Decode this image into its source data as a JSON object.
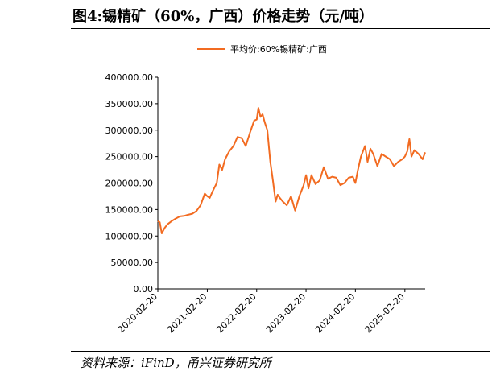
{
  "header": {
    "title": "图4:锡精矿（60%，广西）价格走势（元/吨）"
  },
  "footer": {
    "source": "资料来源：iFinD，甬兴证券研究所"
  },
  "colors": {
    "series": "#f26b21",
    "axis": "#000000"
  },
  "chart_data": {
    "type": "line",
    "title": "",
    "xlabel": "",
    "ylabel": "",
    "ylim": [
      0,
      400000
    ],
    "y_ticks": [
      "0.00",
      "50000.00",
      "100000.00",
      "150000.00",
      "200000.00",
      "250000.00",
      "300000.00",
      "350000.00",
      "400000.00"
    ],
    "x_ticks": [
      "2020-02-20",
      "2021-02-20",
      "2022-02-20",
      "2023-02-20",
      "2024-02-20",
      "2025-02-20"
    ],
    "x_range": [
      "2020-02-20",
      "2025-07-20"
    ],
    "grid": false,
    "legend": "top",
    "series": [
      {
        "name": "平均价:60%锡精矿:广西",
        "x": [
          "2020-02-20",
          "2020-03-05",
          "2020-03-20",
          "2020-04-10",
          "2020-05-01",
          "2020-06-01",
          "2020-07-01",
          "2020-08-01",
          "2020-09-01",
          "2020-10-01",
          "2020-11-01",
          "2020-12-01",
          "2021-01-01",
          "2021-02-01",
          "2021-02-20",
          "2021-03-10",
          "2021-04-01",
          "2021-05-01",
          "2021-05-20",
          "2021-06-10",
          "2021-07-01",
          "2021-08-01",
          "2021-09-01",
          "2021-10-01",
          "2021-11-01",
          "2021-12-01",
          "2022-01-01",
          "2022-02-01",
          "2022-02-20",
          "2022-03-05",
          "2022-03-20",
          "2022-04-05",
          "2022-04-20",
          "2022-05-10",
          "2022-06-01",
          "2022-06-20",
          "2022-07-10",
          "2022-07-25",
          "2022-08-10",
          "2022-09-01",
          "2022-10-01",
          "2022-11-01",
          "2022-12-01",
          "2023-01-01",
          "2023-02-01",
          "2023-02-20",
          "2023-03-10",
          "2023-04-01",
          "2023-05-01",
          "2023-06-01",
          "2023-07-01",
          "2023-08-01",
          "2023-09-01",
          "2023-10-01",
          "2023-11-01",
          "2023-12-01",
          "2024-01-01",
          "2024-02-01",
          "2024-02-20",
          "2024-03-10",
          "2024-04-01",
          "2024-05-01",
          "2024-05-20",
          "2024-06-10",
          "2024-07-01",
          "2024-08-01",
          "2024-09-01",
          "2024-10-01",
          "2024-11-01",
          "2024-12-01",
          "2025-01-01",
          "2025-02-01",
          "2025-02-20",
          "2025-03-10",
          "2025-03-25",
          "2025-04-10",
          "2025-05-01",
          "2025-06-01",
          "2025-07-01",
          "2025-07-20"
        ],
        "values": [
          128000,
          126000,
          105000,
          115000,
          122000,
          128000,
          133000,
          137000,
          138000,
          140000,
          142000,
          147000,
          158000,
          180000,
          175000,
          172000,
          185000,
          200000,
          235000,
          225000,
          245000,
          260000,
          270000,
          287000,
          285000,
          270000,
          295000,
          318000,
          320000,
          342000,
          325000,
          330000,
          315000,
          300000,
          240000,
          205000,
          165000,
          178000,
          172000,
          165000,
          158000,
          175000,
          148000,
          175000,
          195000,
          215000,
          190000,
          215000,
          198000,
          205000,
          230000,
          208000,
          212000,
          210000,
          196000,
          200000,
          210000,
          212000,
          200000,
          225000,
          250000,
          270000,
          240000,
          265000,
          255000,
          232000,
          255000,
          250000,
          245000,
          232000,
          240000,
          245000,
          250000,
          260000,
          283000,
          250000,
          262000,
          255000,
          245000,
          258000
        ]
      }
    ]
  }
}
